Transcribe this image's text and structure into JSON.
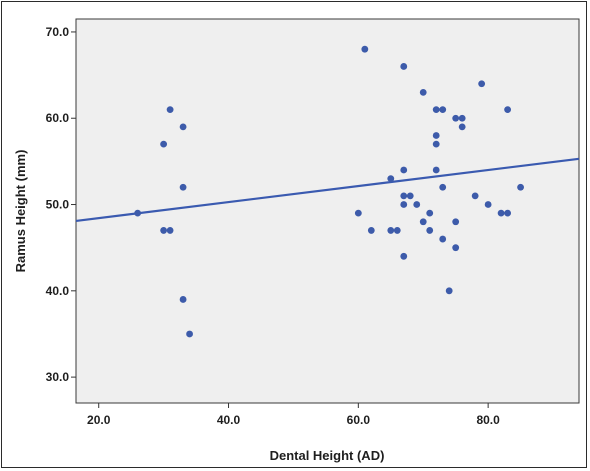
{
  "chart_data": {
    "type": "scatter",
    "title": "",
    "xlabel": "Dental Height (AD)",
    "ylabel": "Ramus Height (mm)",
    "xlim": [
      16.5,
      94
    ],
    "ylim": [
      27,
      71.5
    ],
    "x_ticks": [
      {
        "value": 20,
        "label": "20.0"
      },
      {
        "value": 40,
        "label": "40.0"
      },
      {
        "value": 60,
        "label": "60.0"
      },
      {
        "value": 80,
        "label": "80.0"
      }
    ],
    "y_ticks": [
      {
        "value": 30,
        "label": "30.0"
      },
      {
        "value": 40,
        "label": "40.0"
      },
      {
        "value": 50,
        "label": "50.0"
      },
      {
        "value": 60,
        "label": "60.0"
      },
      {
        "value": 70,
        "label": "70.0"
      }
    ],
    "grid": false,
    "plot_background": "#efefef",
    "point_color": "#3d5baa",
    "line_color": "#3a5ab0",
    "points": [
      [
        26,
        49
      ],
      [
        30,
        57
      ],
      [
        30,
        47
      ],
      [
        31,
        61
      ],
      [
        31,
        47
      ],
      [
        33,
        59
      ],
      [
        33,
        52
      ],
      [
        33,
        39
      ],
      [
        34,
        35
      ],
      [
        60,
        49
      ],
      [
        61,
        68
      ],
      [
        62,
        47
      ],
      [
        65,
        53
      ],
      [
        65,
        47
      ],
      [
        66,
        47
      ],
      [
        67,
        66
      ],
      [
        67,
        54
      ],
      [
        67,
        51
      ],
      [
        67,
        50
      ],
      [
        67,
        44
      ],
      [
        68,
        51
      ],
      [
        69,
        50
      ],
      [
        70,
        63
      ],
      [
        70,
        48
      ],
      [
        71,
        49
      ],
      [
        71,
        47
      ],
      [
        72,
        61
      ],
      [
        72,
        58
      ],
      [
        72,
        57
      ],
      [
        72,
        54
      ],
      [
        73,
        61
      ],
      [
        73,
        52
      ],
      [
        73,
        46
      ],
      [
        74,
        40
      ],
      [
        75,
        60
      ],
      [
        75,
        48
      ],
      [
        75,
        45
      ],
      [
        76,
        60
      ],
      [
        76,
        59
      ],
      [
        78,
        51
      ],
      [
        79,
        64
      ],
      [
        80,
        50
      ],
      [
        82,
        49
      ],
      [
        83,
        61
      ],
      [
        83,
        49
      ],
      [
        85,
        52
      ]
    ],
    "fit_line": {
      "x": [
        16.5,
        94
      ],
      "y": [
        48.1,
        55.3
      ]
    }
  }
}
